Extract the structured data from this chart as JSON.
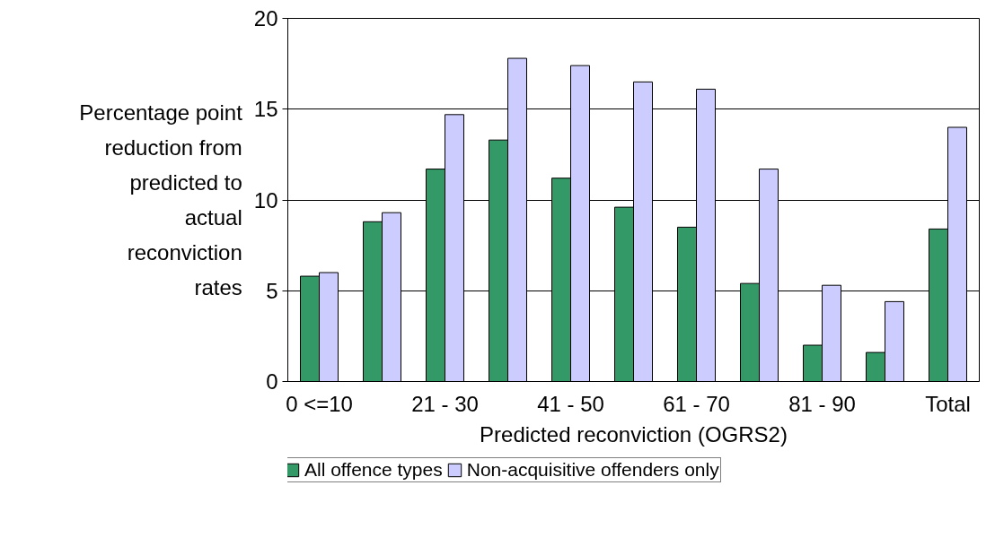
{
  "chart_data": {
    "type": "bar",
    "xlabel": "Predicted reconviction (OGRS2)",
    "ylabel": "Percentage point reduction from predicted to actual reconviction rates",
    "categories": [
      "0 <=10",
      null,
      "21 - 30",
      null,
      "41 - 50",
      null,
      "61 - 70",
      null,
      "81 - 90",
      null,
      "Total"
    ],
    "series": [
      {
        "name": "All offence types",
        "color": "#339966",
        "values": [
          5.8,
          8.8,
          11.7,
          13.3,
          11.2,
          9.6,
          8.5,
          5.4,
          2.0,
          1.6,
          8.4
        ]
      },
      {
        "name": "Non-acquisitive offenders only",
        "color": "#ccccff",
        "values": [
          6.0,
          9.3,
          14.7,
          17.8,
          17.4,
          16.5,
          16.1,
          11.7,
          5.3,
          4.4,
          14.0
        ]
      }
    ],
    "ylim": [
      0,
      20
    ],
    "yticks": [
      0,
      5,
      10,
      15,
      20
    ],
    "grid": "y",
    "legend": "bottom"
  }
}
